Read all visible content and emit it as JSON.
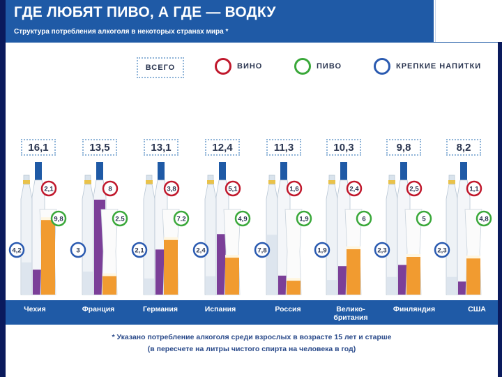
{
  "header": {
    "title": "ГДЕ ЛЮБЯТ ПИВО, А ГДЕ — ВОДКУ",
    "subtitle": "Структура потребления алкоголя в некоторых странах мира *"
  },
  "legend": {
    "total": "ВСЕГО",
    "wine": "ВИНО",
    "beer": "ПИВО",
    "spirits": "КРЕПКИЕ НАПИТКИ"
  },
  "colors": {
    "wine": "#c0182c",
    "beer": "#3aa83a",
    "spirits": "#2a5ab0",
    "header": "#1f5aa6",
    "purple": "#7b3f98",
    "orange": "#f0921e"
  },
  "chart_data": {
    "type": "bar",
    "title": "ГДЕ ЛЮБЯТ ПИВО, А ГДЕ — ВОДКУ",
    "unit": "литры чистого спирта на человека в год",
    "categories": [
      "Чехия",
      "Франция",
      "Германия",
      "Испания",
      "Россия",
      "Велико-британия",
      "Финляндия",
      "США"
    ],
    "total_labels": [
      "16,1",
      "13,5",
      "13,1",
      "12,4",
      "11,3",
      "10,3",
      "9,8",
      "8,2"
    ],
    "series": [
      {
        "name": "ВИНО",
        "labels": [
          "2,1",
          "8",
          "3,8",
          "5,1",
          "1,6",
          "2,4",
          "2,5",
          "1,1"
        ],
        "values": [
          2.1,
          8,
          3.8,
          5.1,
          1.6,
          2.4,
          2.5,
          1.1
        ]
      },
      {
        "name": "ПИВО",
        "labels": [
          "9,8",
          "2.5",
          "7.2",
          "4,9",
          "1,9",
          "6",
          "5",
          "4,8"
        ],
        "values": [
          9.8,
          2.5,
          7.2,
          4.9,
          1.9,
          6,
          5,
          4.8
        ]
      },
      {
        "name": "КРЕПКИЕ НАПИТКИ",
        "labels": [
          "4,2",
          "3",
          "2,1",
          "2,4",
          "7,8",
          "1,9",
          "2,3",
          "2,3"
        ],
        "values": [
          4.2,
          3,
          2.1,
          2.4,
          7.8,
          1.9,
          2.3,
          2.3
        ]
      }
    ]
  },
  "countries": {
    "czech": "Чехия",
    "france": "Франция",
    "germany": "Германия",
    "spain": "Испания",
    "russia": "Россия",
    "uk_line1": "Велико-",
    "uk_line2": "британия",
    "finland": "Финляндия",
    "usa": "США"
  },
  "footnote": {
    "line1": "* Указано потребление алкоголя среди взрослых в возрасте 15 лет и старше",
    "line2": "(в пересчете на литры чистого спирта на человека в год)"
  }
}
